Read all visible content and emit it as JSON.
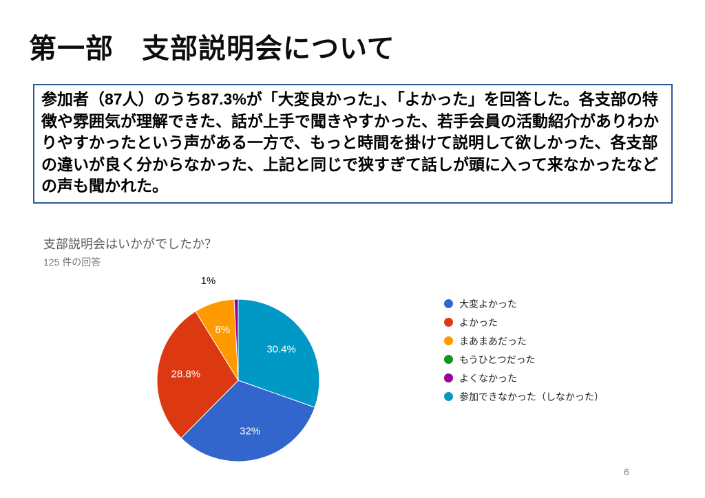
{
  "slide": {
    "title": "第一部　支部説明会について"
  },
  "summary": {
    "text": "参加者（87人）のうち87.3%が「大変良かった」、「よかった」を回答した。各支部の特徴や雰囲気が理解できた、話が上手で聞きやすかった、若手会員の活動紹介がありわかりやすかったという声がある一方で、もっと時間を掛けて説明して欲しかった、各支部の違いが良く分からなかった、上記と同じで狭すぎて話しが頭に入って来なかったなどの声も聞かれた。"
  },
  "page": {
    "number": "6"
  },
  "chart_data": {
    "type": "pie",
    "title": "支部説明会はいかがでしたか？",
    "subtitle": "125 件の回答",
    "total_responses": 125,
    "legend_position": "right",
    "legend": [
      {
        "label": "大変よかった",
        "color": "#3366CC"
      },
      {
        "label": "よかった",
        "color": "#DC3912"
      },
      {
        "label": "まあまあだった",
        "color": "#FF9900"
      },
      {
        "label": "もうひとつだった",
        "color": "#109618"
      },
      {
        "label": "よくなかった",
        "color": "#990099"
      },
      {
        "label": "参加できなかった（しなかった）",
        "color": "#0099C6"
      }
    ],
    "slices": [
      {
        "label": "参加できなかった（しなかった）",
        "pct": 30.4,
        "pct_label": "30.4%",
        "color": "#0099C6",
        "label_outside": false
      },
      {
        "label": "大変よかった",
        "pct": 32,
        "pct_label": "32%",
        "color": "#3366CC",
        "label_outside": false
      },
      {
        "label": "よかった",
        "pct": 28.8,
        "pct_label": "28.8%",
        "color": "#DC3912",
        "label_outside": false
      },
      {
        "label": "まあまあだった",
        "pct": 8,
        "pct_label": "8%",
        "color": "#FF9900",
        "label_outside": false
      },
      {
        "label": "よくなかった",
        "pct": 0.8,
        "pct_label": "1%",
        "color": "#990099",
        "label_outside": true,
        "label_dx": -40
      }
    ]
  }
}
